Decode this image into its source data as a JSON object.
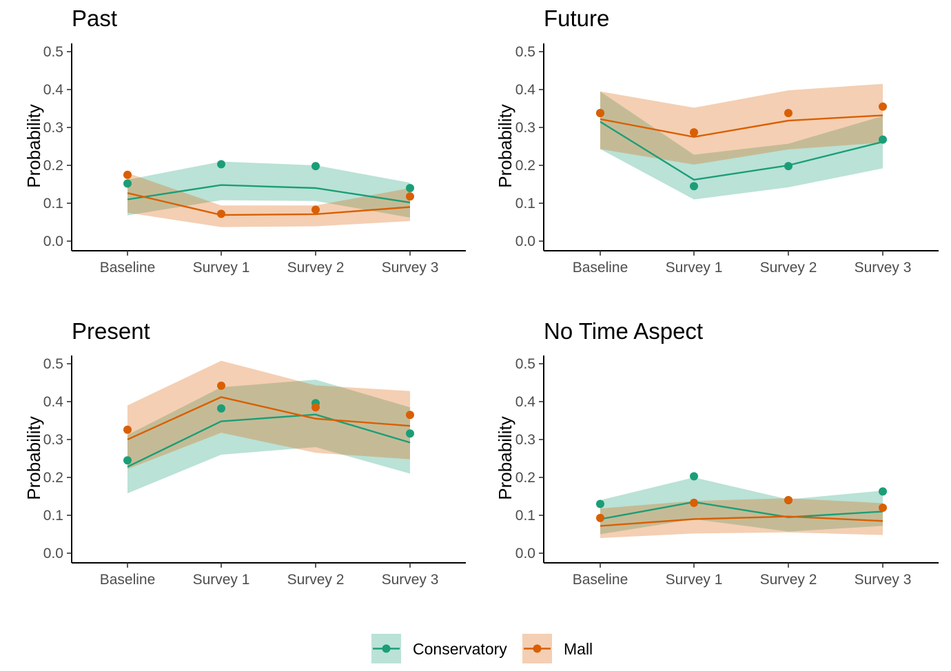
{
  "colors": {
    "Conservatory": "#1b9e77",
    "Mall": "#d95f02",
    "axis": "#000000",
    "tick_text": "#4d4d4d"
  },
  "chart_data": [
    {
      "type": "line",
      "title": "Past",
      "xlabel": "",
      "ylabel": "Probability",
      "categories": [
        "Baseline",
        "Survey 1",
        "Survey 2",
        "Survey 3"
      ],
      "yticks": [
        "0.0",
        "0.1",
        "0.2",
        "0.3",
        "0.4",
        "0.5"
      ],
      "ylim": [
        0,
        0.5
      ],
      "grid": false,
      "series": [
        {
          "name": "Conservatory",
          "fit": [
            0.11,
            0.148,
            0.14,
            0.102
          ],
          "points": [
            0.152,
            0.203,
            0.198,
            0.14
          ],
          "lower": [
            0.068,
            0.108,
            0.106,
            0.062
          ],
          "upper": [
            0.162,
            0.21,
            0.2,
            0.154
          ]
        },
        {
          "name": "Mall",
          "fit": [
            0.127,
            0.069,
            0.071,
            0.09
          ],
          "points": [
            0.175,
            0.072,
            0.083,
            0.118
          ],
          "lower": [
            0.075,
            0.037,
            0.039,
            0.053
          ],
          "upper": [
            0.18,
            0.094,
            0.094,
            0.14
          ]
        }
      ]
    },
    {
      "type": "line",
      "title": "Future",
      "xlabel": "",
      "ylabel": "Probability",
      "categories": [
        "Baseline",
        "Survey 1",
        "Survey 2",
        "Survey 3"
      ],
      "yticks": [
        "0.0",
        "0.1",
        "0.2",
        "0.3",
        "0.4",
        "0.5"
      ],
      "ylim": [
        0,
        0.5
      ],
      "grid": false,
      "series": [
        {
          "name": "Conservatory",
          "fit": [
            0.315,
            0.162,
            0.2,
            0.262
          ],
          "points": [
            0.338,
            0.145,
            0.198,
            0.268
          ],
          "lower": [
            0.243,
            0.11,
            0.142,
            0.192
          ],
          "upper": [
            0.395,
            0.228,
            0.257,
            0.33
          ]
        },
        {
          "name": "Mall",
          "fit": [
            0.322,
            0.275,
            0.318,
            0.332
          ],
          "points": [
            0.338,
            0.287,
            0.338,
            0.355
          ],
          "lower": [
            0.243,
            0.202,
            0.242,
            0.26
          ],
          "upper": [
            0.395,
            0.352,
            0.398,
            0.415
          ]
        }
      ]
    },
    {
      "type": "line",
      "title": "Present",
      "xlabel": "",
      "ylabel": "Probability",
      "categories": [
        "Baseline",
        "Survey 1",
        "Survey 2",
        "Survey 3"
      ],
      "yticks": [
        "0.0",
        "0.1",
        "0.2",
        "0.3",
        "0.4",
        "0.5"
      ],
      "ylim": [
        0,
        0.5
      ],
      "grid": false,
      "series": [
        {
          "name": "Conservatory",
          "fit": [
            0.228,
            0.348,
            0.366,
            0.292
          ],
          "points": [
            0.245,
            0.382,
            0.396,
            0.316
          ],
          "lower": [
            0.158,
            0.26,
            0.28,
            0.21
          ],
          "upper": [
            0.312,
            0.438,
            0.458,
            0.385
          ]
        },
        {
          "name": "Mall",
          "fit": [
            0.3,
            0.412,
            0.355,
            0.336
          ],
          "points": [
            0.326,
            0.442,
            0.385,
            0.365
          ],
          "lower": [
            0.222,
            0.318,
            0.265,
            0.248
          ],
          "upper": [
            0.39,
            0.508,
            0.443,
            0.428
          ]
        }
      ]
    },
    {
      "type": "line",
      "title": "No Time Aspect",
      "xlabel": "",
      "ylabel": "Probability",
      "categories": [
        "Baseline",
        "Survey 1",
        "Survey 2",
        "Survey 3"
      ],
      "yticks": [
        "0.0",
        "0.1",
        "0.2",
        "0.3",
        "0.4",
        "0.5"
      ],
      "ylim": [
        0,
        0.5
      ],
      "grid": false,
      "series": [
        {
          "name": "Conservatory",
          "fit": [
            0.09,
            0.135,
            0.095,
            0.11
          ],
          "points": [
            0.13,
            0.203,
            0.14,
            0.163
          ],
          "lower": [
            0.05,
            0.09,
            0.057,
            0.072
          ],
          "upper": [
            0.14,
            0.2,
            0.142,
            0.165
          ]
        },
        {
          "name": "Mall",
          "fit": [
            0.072,
            0.09,
            0.097,
            0.085
          ],
          "points": [
            0.093,
            0.133,
            0.14,
            0.12
          ],
          "lower": [
            0.04,
            0.052,
            0.055,
            0.048
          ],
          "upper": [
            0.118,
            0.138,
            0.145,
            0.132
          ]
        }
      ]
    }
  ],
  "legend": {
    "position": "bottom",
    "items": [
      {
        "name": "Conservatory"
      },
      {
        "name": "Mall"
      }
    ]
  }
}
